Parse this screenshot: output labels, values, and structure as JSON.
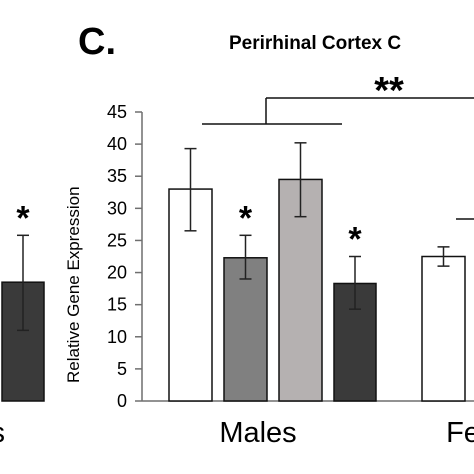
{
  "panel_letter": "C.",
  "chart_data": {
    "type": "bar",
    "title": "Perirhinal Cortex C",
    "ylabel": "Relative Gene Expression",
    "xlabel": "",
    "ylim": [
      0,
      45
    ],
    "yticks": [
      0,
      5,
      10,
      15,
      20,
      25,
      30,
      35,
      40,
      45
    ],
    "grid": false,
    "groups": [
      "s",
      "Males",
      "Fe"
    ],
    "series_colors": [
      "#ffffff",
      "#808080",
      "#b5b1b1",
      "#3a3a3a"
    ],
    "bars": [
      {
        "group": "s",
        "series_index": 3,
        "value": 18.5,
        "error_low": 11.0,
        "error_high": 25.8,
        "sig": "*"
      },
      {
        "group": "Males",
        "series_index": 0,
        "value": 33.0,
        "error_low": 26.5,
        "error_high": 39.3,
        "sig": ""
      },
      {
        "group": "Males",
        "series_index": 1,
        "value": 22.3,
        "error_low": 19.0,
        "error_high": 25.8,
        "sig": "*"
      },
      {
        "group": "Males",
        "series_index": 2,
        "value": 34.5,
        "error_low": 28.7,
        "error_high": 40.2,
        "sig": ""
      },
      {
        "group": "Males",
        "series_index": 3,
        "value": 18.3,
        "error_low": 14.3,
        "error_high": 22.5,
        "sig": "*"
      },
      {
        "group": "Fe",
        "series_index": 0,
        "value": 22.5,
        "error_low": 21.0,
        "error_high": 24.0,
        "sig": ""
      }
    ],
    "comparison_labels": [
      "**"
    ]
  }
}
